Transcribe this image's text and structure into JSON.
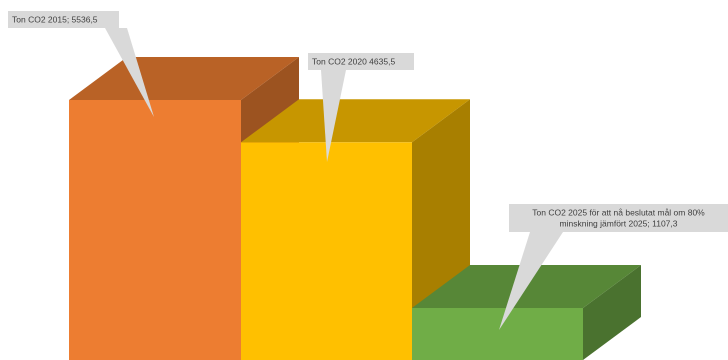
{
  "chart_data": {
    "type": "bar",
    "style": "3d-column",
    "ylim": [
      0,
      5536.5
    ],
    "grid": false,
    "legend": "none",
    "categories": [
      "2015",
      "2020",
      "2025"
    ],
    "values": [
      5536.5,
      4635.5,
      1107.3
    ],
    "colors": [
      "#ed7d31",
      "#ffc000",
      "#70ad47"
    ],
    "data_labels": [
      {
        "lines": [
          "Ton CO2 2015; 5536,5"
        ]
      },
      {
        "lines": [
          "Ton CO2 2020 4635,5"
        ]
      },
      {
        "lines": [
          "Ton CO2 2025 för att nå beslutat mål om 80%",
          "minskning jämfört 2025; 1107,3"
        ]
      }
    ]
  }
}
